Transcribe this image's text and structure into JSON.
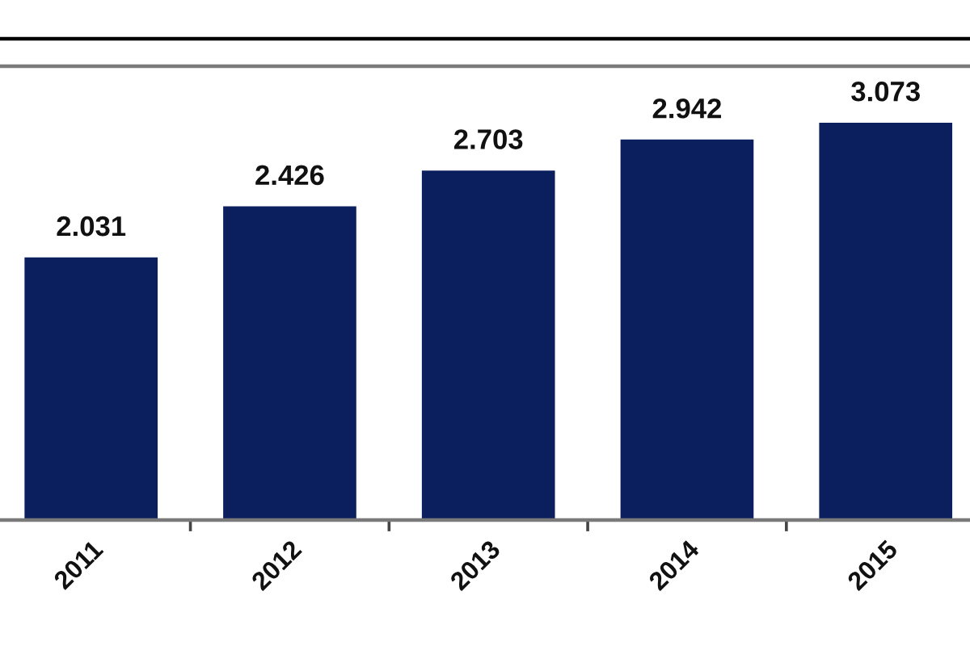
{
  "chart_data": {
    "type": "bar",
    "categories": [
      "2011",
      "2012",
      "2013",
      "2014",
      "2015"
    ],
    "values": [
      2.031,
      2.426,
      2.703,
      2.942,
      3.073
    ],
    "color": "#0b1f5e",
    "data_labels": true
  }
}
